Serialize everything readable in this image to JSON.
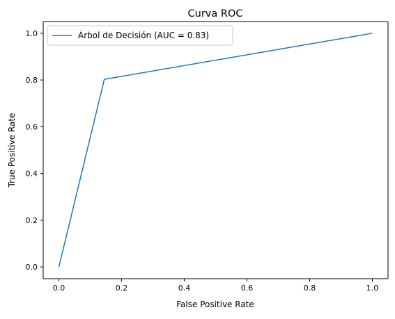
{
  "chart_data": {
    "type": "line",
    "title": "Curva ROC",
    "xlabel": "False Positive Rate",
    "ylabel": "True Positive Rate",
    "xlim": [
      -0.05,
      1.05
    ],
    "ylim": [
      -0.05,
      1.05
    ],
    "x_ticks": [
      0.0,
      0.2,
      0.4,
      0.6,
      0.8,
      1.0
    ],
    "y_ticks": [
      0.0,
      0.2,
      0.4,
      0.6,
      0.8,
      1.0
    ],
    "x_tick_labels": [
      "0.0",
      "0.2",
      "0.4",
      "0.6",
      "0.8",
      "1.0"
    ],
    "y_tick_labels": [
      "0.0",
      "0.2",
      "0.4",
      "0.6",
      "0.8",
      "1.0"
    ],
    "grid": false,
    "legend_position": "top-left",
    "series": [
      {
        "name": "Árbol de Decisión (AUC = 0.83)",
        "color": "#1f77b4",
        "x": [
          0.0,
          0.145,
          1.0
        ],
        "y": [
          0.0,
          0.803,
          1.0
        ]
      }
    ]
  }
}
